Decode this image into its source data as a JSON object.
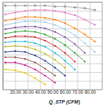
{
  "chart_data": {
    "type": "line",
    "x_label": "Q_STP (CFM)",
    "x": [
      12,
      20,
      28,
      36,
      44,
      52,
      60,
      68,
      76,
      84
    ],
    "xlim": [
      10,
      90
    ],
    "xticks": [
      {
        "value": 20,
        "label": "20.00"
      },
      {
        "value": 30,
        "label": "30.00"
      },
      {
        "value": 40,
        "label": "40.00"
      },
      {
        "value": 50,
        "label": "50.00"
      },
      {
        "value": 60,
        "label": "60.00"
      },
      {
        "value": 70,
        "label": "70.00"
      },
      {
        "value": 80,
        "label": "80.00"
      }
    ],
    "ylim": [
      0,
      10
    ],
    "yticks": [
      0,
      1,
      2,
      3,
      4,
      5,
      6,
      7,
      8,
      9,
      10
    ],
    "grid": true,
    "tick_labels": "x",
    "series": [
      {
        "color": "#a0a0a0",
        "marker": "square",
        "values": [
          9.6,
          9.6,
          9.6,
          9.6,
          9.6,
          9.5,
          9.5,
          9.4,
          9.3,
          9.1
        ]
      },
      {
        "color": "#e377c2",
        "marker": "circle",
        "values": [
          8.6,
          8.8,
          9.0,
          9.1,
          9.1,
          9.0,
          8.8,
          8.5,
          8.0,
          7.4
        ]
      },
      {
        "color": "#ff7f0e",
        "marker": "circle",
        "values": [
          7.9,
          8.1,
          8.3,
          8.3,
          8.2,
          8.0,
          7.6,
          7.0,
          6.3,
          5.5
        ]
      },
      {
        "color": "#9ecae1",
        "marker": "circle",
        "values": [
          7.4,
          7.6,
          7.8,
          7.8,
          7.7,
          7.4,
          6.9,
          6.2,
          5.3,
          4.3
        ]
      },
      {
        "color": "#7b4fa0",
        "marker": "circle",
        "values": [
          6.9,
          7.1,
          7.2,
          7.2,
          7.0,
          6.6,
          6.0,
          5.2,
          4.2,
          null
        ]
      },
      {
        "color": "#2ca02c",
        "marker": "circle",
        "values": [
          6.4,
          6.6,
          6.7,
          6.6,
          6.3,
          5.8,
          5.1,
          4.2,
          3.2,
          null
        ]
      },
      {
        "color": "#d62728",
        "marker": "circle",
        "values": [
          5.9,
          6.1,
          6.1,
          6.0,
          5.6,
          5.0,
          4.2,
          3.2,
          null,
          null
        ]
      },
      {
        "color": "#17becf",
        "marker": "circle",
        "values": [
          5.4,
          5.5,
          5.5,
          5.3,
          4.9,
          4.2,
          3.3,
          2.3,
          null,
          null
        ]
      },
      {
        "color": "#bcbd22",
        "marker": "circle",
        "values": [
          4.9,
          5.0,
          4.9,
          4.6,
          4.1,
          3.4,
          2.5,
          null,
          null,
          null
        ]
      },
      {
        "color": "#1f3f8f",
        "marker": "circle",
        "values": [
          4.3,
          4.4,
          4.3,
          3.9,
          3.3,
          2.5,
          1.6,
          null,
          null,
          null
        ]
      },
      {
        "color": "#8c564b",
        "marker": "circle",
        "values": [
          3.7,
          3.7,
          3.5,
          3.1,
          2.4,
          1.6,
          null,
          null,
          null,
          null
        ]
      },
      {
        "color": "#c71585",
        "marker": "circle",
        "values": [
          3.1,
          3.1,
          2.8,
          2.3,
          1.6,
          0.8,
          null,
          null,
          null,
          null
        ]
      },
      {
        "color": "#e6c700",
        "marker": "circle",
        "values": [
          2.3,
          2.2,
          1.9,
          1.3,
          0.6,
          null,
          null,
          null,
          null,
          null
        ]
      }
    ]
  }
}
